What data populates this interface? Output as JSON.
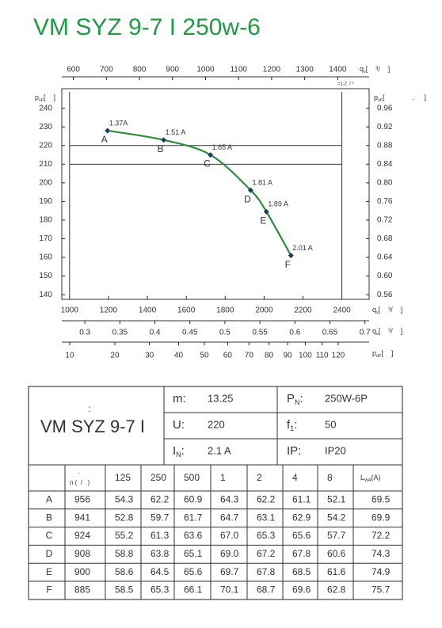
{
  "title": "VM SYZ 9-7 I 250w-6",
  "chart_data": {
    "type": "line",
    "x": [
      1195,
      1484,
      1724,
      1931,
      2012,
      2138
    ],
    "xlim": [
      960,
      2540
    ],
    "xticks": [
      1000,
      1200,
      1400,
      1600,
      1800,
      2000,
      2200,
      2400
    ],
    "ylim": [
      137.5,
      250.5
    ],
    "yticks": [
      140,
      150,
      160,
      170,
      180,
      190,
      200,
      210,
      220,
      230,
      240
    ],
    "y2lim": [
      0.55,
      1.002
    ],
    "y2ticks": [
      0.56,
      {
        "value": 0.6,
        "label": "0.60"
      },
      0.64,
      0.68,
      0.72,
      0.76,
      {
        "value": 0.8,
        "label": "0.80"
      },
      0.84,
      0.88,
      0.92,
      0.96
    ],
    "x2lim": [
      565,
      1495
    ],
    "x2ticks": [
      600,
      700,
      800,
      900,
      1000,
      1100,
      1200,
      1300,
      1400
    ],
    "x3lim": [
      0.267,
      0.706
    ],
    "x3ticks": [
      0.3,
      0.35,
      0.4,
      0.45,
      0.5,
      0.55,
      0.6,
      0.65,
      0.7
    ],
    "x4lim": [
      8.6,
      140.5
    ],
    "x4scale": "sqrt",
    "x4ticks": [
      10,
      20,
      30,
      40,
      50,
      60,
      70,
      80,
      90,
      100,
      110,
      120
    ],
    "reference_lines": {
      "x": [
        1000,
        2400
      ],
      "y": [
        210,
        220
      ]
    },
    "xlabel": {
      "main": "q",
      "sub": "v",
      "unit": "[    ³/    ]"
    },
    "x2label": {
      "main": "q",
      "sub": "v",
      "unit": "[    ³/    ]",
      "note": "=1.2  / ³"
    },
    "x3label": {
      "main": "q",
      "sub": "v",
      "unit": "[    ³/    ]"
    },
    "x4label": {
      "main": "p",
      "sub": "dF",
      "unit": "[    ]"
    },
    "ylabel": {
      "main": "p",
      "sub": "sF",
      "unit": "[    ]"
    },
    "y2label": {
      "main": "p",
      "sub": "sF",
      "unit": "[              .     ]"
    },
    "series": [
      {
        "color": "#2e8b3e",
        "marker_color": "#1f3d5c",
        "values": [
          228,
          223,
          215,
          196,
          184.5,
          161
        ],
        "point_labels": [
          "A",
          "B",
          "C",
          "D",
          "E",
          "F"
        ],
        "annotations": [
          "1.37A",
          "1.51 A",
          "1.65 A",
          "1.81 A",
          "1.89 A",
          "2.01 A"
        ]
      }
    ]
  },
  "spec": {
    "name_mark": ":",
    "name": "VM SYZ 9-7 I",
    "left": [
      {
        "label": "m:",
        "sub": "",
        "suffix": "",
        "value": "13.25"
      },
      {
        "label": "U:",
        "sub": "",
        "suffix": "",
        "value": "220"
      },
      {
        "label": "I",
        "sub": "N",
        "suffix": ":",
        "value": "2.1 A"
      }
    ],
    "right": [
      {
        "label": "P",
        "sub": "N",
        "suffix": ":",
        "value": "250W-6P"
      },
      {
        "label": "f",
        "sub": "1",
        "suffix": ":",
        "value": "50"
      },
      {
        "label": "IP:",
        "sub": "",
        "suffix": "",
        "value": "IP20"
      }
    ]
  },
  "table": {
    "speed_mark": ".",
    "speed_header": "n (  /   )",
    "bands": [
      "125",
      "250",
      "500",
      "1",
      "2",
      "4",
      "8"
    ],
    "level_header": {
      "main": "L",
      "sub": "WA",
      "unit": "(A)"
    },
    "rows": [
      [
        "A",
        "956",
        "54.3",
        "62.2",
        "60.9",
        "64.3",
        "62.2",
        "61.1",
        "52.1",
        "69.5"
      ],
      [
        "B",
        "941",
        "52.8",
        "59.7",
        "61.7",
        "64.7",
        "63.1",
        "62.9",
        "54.2",
        "69.9"
      ],
      [
        "C",
        "924",
        "55.2",
        "61.3",
        "63.6",
        "67.0",
        "65.3",
        "65.6",
        "57.7",
        "72.2"
      ],
      [
        "D",
        "908",
        "58.8",
        "63.8",
        "65.1",
        "69.0",
        "67.2",
        "67.8",
        "60.6",
        "74.3"
      ],
      [
        "E",
        "900",
        "58.6",
        "64.5",
        "65.6",
        "69.7",
        "67.8",
        "68.5",
        "61.6",
        "74.9"
      ],
      [
        "F",
        "885",
        "58.5",
        "65.3",
        "66.1",
        "70.1",
        "68.7",
        "69.6",
        "62.8",
        "75.7"
      ]
    ]
  }
}
